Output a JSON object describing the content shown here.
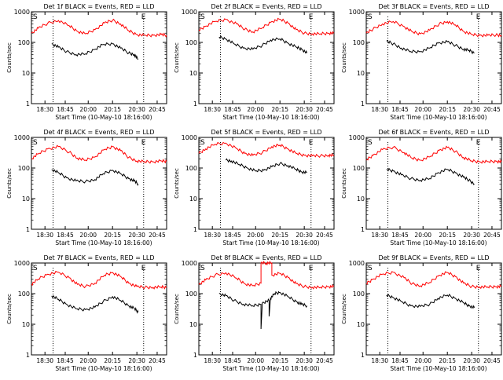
{
  "figure": {
    "tick_x_labels": [
      "18:30",
      "18:45",
      "20:00",
      "20:15",
      "20:30",
      "20:45"
    ],
    "tick_y_labels": [
      "1",
      "10",
      "100",
      "1000"
    ],
    "ylabel": "Counts/sec",
    "xlabel": "Start Time (10-May-10 18:16:00)",
    "marker_S": "S",
    "marker_E": "E"
  },
  "chart_data": [
    {
      "type": "line",
      "title": "Det 1f BLACK = Events, RED = LLD",
      "xlabel": "Start Time (10-May-10 18:16:00)",
      "ylabel": "Counts/sec",
      "yscale": "log",
      "ylim": [
        1,
        1000
      ],
      "x_ticks": [
        "18:30",
        "18:45",
        "20:00",
        "20:15",
        "20:30",
        "20:45"
      ],
      "series": [
        {
          "color": "#ff0000",
          "x": [
            0,
            0.05,
            0.12,
            0.2,
            0.28,
            0.34,
            0.4,
            0.47,
            0.54,
            0.6,
            0.66,
            0.72,
            0.78,
            0.84,
            0.9,
            0.96,
            1.0
          ],
          "values": [
            200,
            290,
            420,
            520,
            350,
            230,
            190,
            260,
            430,
            530,
            400,
            240,
            180,
            170,
            170,
            180,
            170
          ]
        },
        {
          "color": "#000000",
          "x": [
            0.15,
            0.2,
            0.26,
            0.33,
            0.4,
            0.47,
            0.53,
            0.6,
            0.66,
            0.72,
            0.76,
            0.79
          ],
          "values": [
            90,
            70,
            50,
            40,
            42,
            60,
            85,
            90,
            65,
            45,
            40,
            28
          ]
        }
      ]
    },
    {
      "type": "line",
      "title": "Det 2f BLACK = Events, RED = LLD",
      "xlabel": "Start Time (10-May-10 18:16:00)",
      "ylabel": "Counts/sec",
      "yscale": "log",
      "ylim": [
        1,
        1000
      ],
      "x_ticks": [
        "18:30",
        "18:45",
        "20:00",
        "20:15",
        "20:30",
        "20:45"
      ],
      "series": [
        {
          "color": "#ff0000",
          "x": [
            0,
            0.05,
            0.12,
            0.2,
            0.28,
            0.34,
            0.4,
            0.47,
            0.54,
            0.6,
            0.66,
            0.72,
            0.78,
            0.84,
            0.9,
            0.96,
            1.0
          ],
          "values": [
            250,
            340,
            480,
            560,
            400,
            270,
            220,
            300,
            480,
            570,
            430,
            260,
            200,
            190,
            190,
            200,
            200
          ]
        },
        {
          "color": "#000000",
          "x": [
            0.15,
            0.2,
            0.26,
            0.33,
            0.4,
            0.47,
            0.53,
            0.6,
            0.66,
            0.72,
            0.76,
            0.8
          ],
          "values": [
            150,
            130,
            90,
            65,
            60,
            80,
            120,
            130,
            95,
            70,
            60,
            45
          ]
        }
      ]
    },
    {
      "type": "line",
      "title": "Det 3f BLACK = Events, RED = LLD",
      "xlabel": "Start Time (10-May-10 18:16:00)",
      "ylabel": "Counts/sec",
      "yscale": "log",
      "ylim": [
        1,
        1000
      ],
      "x_ticks": [
        "18:30",
        "18:45",
        "20:00",
        "20:15",
        "20:30",
        "20:45"
      ],
      "series": [
        {
          "color": "#ff0000",
          "x": [
            0,
            0.05,
            0.12,
            0.2,
            0.28,
            0.34,
            0.4,
            0.47,
            0.54,
            0.6,
            0.66,
            0.72,
            0.78,
            0.84,
            0.9,
            0.96,
            1.0
          ],
          "values": [
            200,
            270,
            400,
            480,
            330,
            220,
            190,
            250,
            400,
            480,
            370,
            230,
            180,
            170,
            170,
            175,
            170
          ]
        },
        {
          "color": "#000000",
          "x": [
            0.15,
            0.2,
            0.26,
            0.33,
            0.4,
            0.47,
            0.53,
            0.6,
            0.66,
            0.72,
            0.76,
            0.8
          ],
          "values": [
            110,
            90,
            65,
            50,
            50,
            65,
            95,
            105,
            80,
            60,
            55,
            45
          ]
        }
      ]
    },
    {
      "type": "line",
      "title": "Det 4f BLACK = Events, RED = LLD",
      "xlabel": "Start Time (10-May-10 18:16:00)",
      "ylabel": "Counts/sec",
      "yscale": "log",
      "ylim": [
        1,
        1000
      ],
      "x_ticks": [
        "18:30",
        "18:45",
        "20:00",
        "20:15",
        "20:30",
        "20:45"
      ],
      "series": [
        {
          "color": "#ff0000",
          "x": [
            0,
            0.05,
            0.12,
            0.2,
            0.28,
            0.34,
            0.4,
            0.47,
            0.54,
            0.6,
            0.66,
            0.72,
            0.78,
            0.84,
            0.9,
            0.96,
            1.0
          ],
          "values": [
            200,
            290,
            420,
            500,
            330,
            210,
            180,
            230,
            400,
            500,
            370,
            220,
            170,
            160,
            160,
            170,
            165
          ]
        },
        {
          "color": "#000000",
          "x": [
            0.15,
            0.2,
            0.26,
            0.33,
            0.4,
            0.47,
            0.53,
            0.6,
            0.66,
            0.72,
            0.76,
            0.79
          ],
          "values": [
            90,
            70,
            48,
            38,
            36,
            42,
            65,
            85,
            65,
            45,
            38,
            30
          ]
        }
      ]
    },
    {
      "type": "line",
      "title": "Det 5f BLACK = Events, RED = LLD",
      "xlabel": "Start Time (10-May-10 18:16:00)",
      "ylabel": "Counts/sec",
      "yscale": "log",
      "ylim": [
        1,
        1000
      ],
      "x_ticks": [
        "18:30",
        "18:45",
        "20:00",
        "20:15",
        "20:30",
        "20:45"
      ],
      "series": [
        {
          "color": "#ff0000",
          "x": [
            0,
            0.05,
            0.12,
            0.2,
            0.28,
            0.34,
            0.4,
            0.47,
            0.54,
            0.6,
            0.66,
            0.72,
            0.78,
            0.84,
            0.9,
            0.96,
            1.0
          ],
          "values": [
            300,
            420,
            600,
            650,
            430,
            300,
            260,
            320,
            500,
            560,
            420,
            300,
            260,
            250,
            250,
            260,
            260
          ]
        },
        {
          "color": "#000000",
          "x": [
            0.2,
            0.24,
            0.3,
            0.36,
            0.42,
            0.48,
            0.54,
            0.6,
            0.66,
            0.72,
            0.76,
            0.8
          ],
          "values": [
            180,
            170,
            130,
            100,
            80,
            85,
            110,
            140,
            120,
            90,
            75,
            70
          ]
        }
      ]
    },
    {
      "type": "line",
      "title": "Det 6f BLACK = Events, RED = LLD",
      "xlabel": "Start Time (10-May-10 18:16:00)",
      "ylabel": "Counts/sec",
      "yscale": "log",
      "ylim": [
        1,
        1000
      ],
      "x_ticks": [
        "18:30",
        "18:45",
        "20:00",
        "20:15",
        "20:30",
        "20:45"
      ],
      "series": [
        {
          "color": "#ff0000",
          "x": [
            0,
            0.05,
            0.12,
            0.2,
            0.28,
            0.34,
            0.4,
            0.47,
            0.54,
            0.6,
            0.66,
            0.72,
            0.78,
            0.84,
            0.9,
            0.96,
            1.0
          ],
          "values": [
            180,
            260,
            400,
            480,
            320,
            210,
            180,
            230,
            380,
            470,
            350,
            220,
            170,
            160,
            160,
            165,
            160
          ]
        },
        {
          "color": "#000000",
          "x": [
            0.15,
            0.2,
            0.26,
            0.33,
            0.4,
            0.47,
            0.53,
            0.6,
            0.66,
            0.72,
            0.76,
            0.8
          ],
          "values": [
            90,
            80,
            60,
            45,
            40,
            45,
            70,
            90,
            70,
            50,
            40,
            30
          ]
        }
      ]
    },
    {
      "type": "line",
      "title": "Det 7f BLACK = Events, RED = LLD",
      "xlabel": "Start Time (10-May-10 18:16:00)",
      "ylabel": "Counts/sec",
      "yscale": "log",
      "ylim": [
        1,
        1000
      ],
      "x_ticks": [
        "18:30",
        "18:45",
        "20:00",
        "20:15",
        "20:30",
        "20:45"
      ],
      "series": [
        {
          "color": "#ff0000",
          "x": [
            0,
            0.05,
            0.12,
            0.2,
            0.28,
            0.34,
            0.4,
            0.47,
            0.54,
            0.6,
            0.66,
            0.72,
            0.78,
            0.84,
            0.9,
            0.96,
            1.0
          ],
          "values": [
            200,
            300,
            430,
            500,
            330,
            200,
            170,
            220,
            400,
            490,
            360,
            220,
            170,
            160,
            160,
            165,
            160
          ]
        },
        {
          "color": "#000000",
          "x": [
            0.15,
            0.2,
            0.26,
            0.33,
            0.4,
            0.47,
            0.53,
            0.6,
            0.66,
            0.72,
            0.76,
            0.79
          ],
          "values": [
            85,
            65,
            45,
            32,
            30,
            36,
            55,
            80,
            60,
            40,
            33,
            25
          ]
        }
      ]
    },
    {
      "type": "line",
      "title": "Det 8f BLACK = Events, RED = LLD",
      "xlabel": "Start Time (10-May-10 18:16:00)",
      "ylabel": "Counts/sec",
      "yscale": "log",
      "ylim": [
        1,
        1000
      ],
      "x_ticks": [
        "18:30",
        "18:45",
        "20:00",
        "20:15",
        "20:30",
        "20:45"
      ],
      "series": [
        {
          "color": "#ff0000",
          "x": [
            0,
            0.05,
            0.12,
            0.2,
            0.28,
            0.34,
            0.4,
            0.46,
            0.46,
            0.5,
            0.5,
            0.54,
            0.54,
            0.6,
            0.66,
            0.72,
            0.78,
            0.84,
            0.9,
            0.96,
            1.0
          ],
          "values": [
            200,
            280,
            400,
            480,
            320,
            210,
            180,
            220,
            1000,
            1000,
            1000,
            1000,
            400,
            460,
            340,
            210,
            170,
            160,
            160,
            170,
            170
          ]
        },
        {
          "color": "#000000",
          "x": [
            0.15,
            0.2,
            0.26,
            0.33,
            0.4,
            0.46,
            0.46,
            0.47,
            0.52,
            0.52,
            0.53,
            0.56,
            0.6,
            0.66,
            0.72,
            0.76,
            0.8
          ],
          "values": [
            100,
            85,
            60,
            45,
            40,
            45,
            7,
            50,
            60,
            18,
            70,
            100,
            110,
            80,
            55,
            45,
            40
          ]
        }
      ]
    },
    {
      "type": "line",
      "title": "Det 9f BLACK = Events, RED = LLD",
      "xlabel": "Start Time (10-May-10 18:16:00)",
      "ylabel": "Counts/sec",
      "yscale": "log",
      "ylim": [
        1,
        1000
      ],
      "x_ticks": [
        "18:30",
        "18:45",
        "20:00",
        "20:15",
        "20:30",
        "20:45"
      ],
      "series": [
        {
          "color": "#ff0000",
          "x": [
            0,
            0.05,
            0.12,
            0.2,
            0.28,
            0.34,
            0.4,
            0.47,
            0.54,
            0.6,
            0.66,
            0.72,
            0.78,
            0.84,
            0.9,
            0.96,
            1.0
          ],
          "values": [
            210,
            300,
            430,
            500,
            330,
            210,
            180,
            230,
            400,
            490,
            360,
            220,
            170,
            165,
            165,
            170,
            170
          ]
        },
        {
          "color": "#000000",
          "x": [
            0.15,
            0.2,
            0.26,
            0.33,
            0.4,
            0.47,
            0.53,
            0.6,
            0.66,
            0.72,
            0.76,
            0.8
          ],
          "values": [
            90,
            75,
            55,
            40,
            38,
            45,
            70,
            90,
            70,
            50,
            40,
            35
          ]
        }
      ]
    }
  ]
}
